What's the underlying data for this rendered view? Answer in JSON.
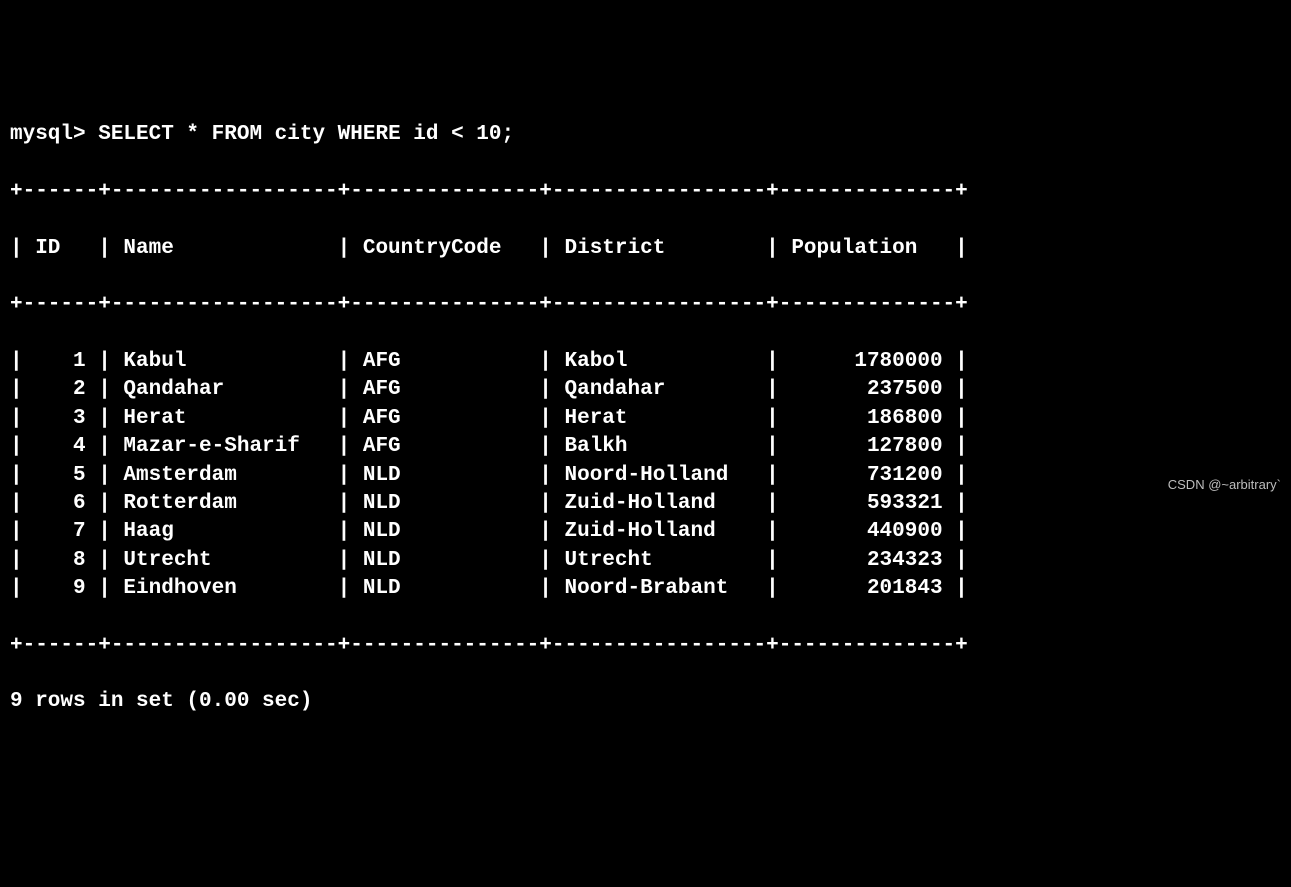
{
  "prompt": "mysql> ",
  "query": "SELECT * FROM city WHERE id < 10;",
  "columns": [
    {
      "name": "ID",
      "width": 4,
      "align": "right"
    },
    {
      "name": "Name",
      "width": 16,
      "align": "left"
    },
    {
      "name": "CountryCode",
      "width": 13,
      "align": "left"
    },
    {
      "name": "District",
      "width": 15,
      "align": "left"
    },
    {
      "name": "Population",
      "width": 12,
      "align": "right"
    }
  ],
  "rows": [
    {
      "ID": "1",
      "Name": "Kabul",
      "CountryCode": "AFG",
      "District": "Kabol",
      "Population": "1780000"
    },
    {
      "ID": "2",
      "Name": "Qandahar",
      "CountryCode": "AFG",
      "District": "Qandahar",
      "Population": "237500"
    },
    {
      "ID": "3",
      "Name": "Herat",
      "CountryCode": "AFG",
      "District": "Herat",
      "Population": "186800"
    },
    {
      "ID": "4",
      "Name": "Mazar-e-Sharif",
      "CountryCode": "AFG",
      "District": "Balkh",
      "Population": "127800"
    },
    {
      "ID": "5",
      "Name": "Amsterdam",
      "CountryCode": "NLD",
      "District": "Noord-Holland",
      "Population": "731200"
    },
    {
      "ID": "6",
      "Name": "Rotterdam",
      "CountryCode": "NLD",
      "District": "Zuid-Holland",
      "Population": "593321"
    },
    {
      "ID": "7",
      "Name": "Haag",
      "CountryCode": "NLD",
      "District": "Zuid-Holland",
      "Population": "440900"
    },
    {
      "ID": "8",
      "Name": "Utrecht",
      "CountryCode": "NLD",
      "District": "Utrecht",
      "Population": "234323"
    },
    {
      "ID": "9",
      "Name": "Eindhoven",
      "CountryCode": "NLD",
      "District": "Noord-Brabant",
      "Population": "201843"
    }
  ],
  "footer": "9 rows in set (0.00 sec)",
  "watermark": "CSDN @~arbitrary`",
  "text_color": "#ffffff",
  "background_color": "#000000"
}
